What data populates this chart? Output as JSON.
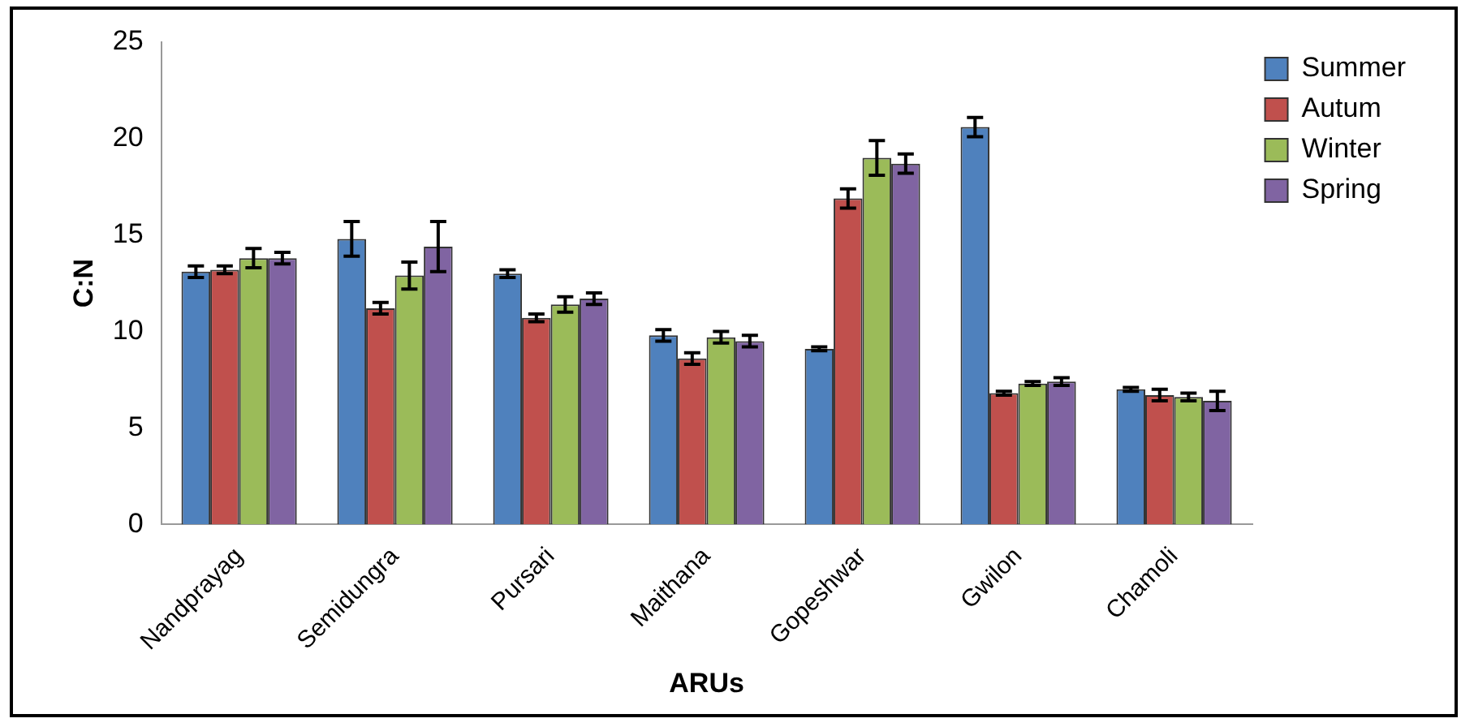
{
  "chart_data": {
    "type": "bar",
    "xlabel": "ARUs",
    "ylabel": "C:N",
    "categories": [
      "Nandprayag",
      "Semidungra",
      "Pursari",
      "Maithana",
      "Gopeshwar",
      "Gwilon",
      "Chamoli"
    ],
    "series": [
      {
        "name": "Summer",
        "color": "#4f81bd",
        "values": [
          13.1,
          14.8,
          13.0,
          9.8,
          9.1,
          20.6,
          7.0
        ],
        "errors": [
          0.3,
          0.9,
          0.2,
          0.3,
          0.1,
          0.5,
          0.1
        ]
      },
      {
        "name": "Autum",
        "color": "#c0504d",
        "values": [
          13.2,
          11.2,
          10.7,
          8.6,
          16.9,
          6.8,
          6.7
        ],
        "errors": [
          0.2,
          0.3,
          0.2,
          0.3,
          0.5,
          0.1,
          0.3
        ]
      },
      {
        "name": "Winter",
        "color": "#9bbb59",
        "values": [
          13.8,
          12.9,
          11.4,
          9.7,
          19.0,
          7.3,
          6.6
        ],
        "errors": [
          0.5,
          0.7,
          0.4,
          0.3,
          0.9,
          0.1,
          0.2
        ]
      },
      {
        "name": "Spring",
        "color": "#8064a2",
        "values": [
          13.8,
          14.4,
          11.7,
          9.5,
          18.7,
          7.4,
          6.4
        ],
        "errors": [
          0.3,
          1.3,
          0.3,
          0.3,
          0.5,
          0.2,
          0.5
        ]
      }
    ],
    "ylim": [
      0,
      25
    ],
    "yticks": [
      0,
      5,
      10,
      15,
      20,
      25
    ],
    "grid": false,
    "legend": "top right"
  }
}
